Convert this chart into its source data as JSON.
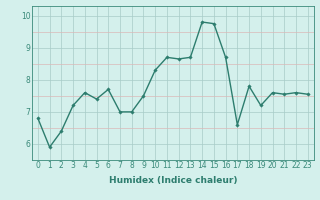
{
  "x": [
    0,
    1,
    2,
    3,
    4,
    5,
    6,
    7,
    8,
    9,
    10,
    11,
    12,
    13,
    14,
    15,
    16,
    17,
    18,
    19,
    20,
    21,
    22,
    23
  ],
  "y": [
    6.8,
    5.9,
    6.4,
    7.2,
    7.6,
    7.4,
    7.7,
    7.0,
    7.0,
    7.5,
    8.3,
    8.7,
    8.65,
    8.7,
    9.8,
    9.75,
    8.7,
    6.6,
    7.8,
    7.2,
    7.6,
    7.55,
    7.6,
    7.55
  ],
  "line_color": "#2d7d6e",
  "marker": "D",
  "marker_size": 1.8,
  "line_width": 1.0,
  "bg_color": "#d4f0ec",
  "grid_color_major": "#a8ccc8",
  "minor_grid_color": "#dbb8b8",
  "xlabel": "Humidex (Indice chaleur)",
  "xlabel_fontsize": 6.5,
  "xlabel_weight": "bold",
  "yticks": [
    6,
    7,
    8,
    9,
    10
  ],
  "xticks": [
    0,
    1,
    2,
    3,
    4,
    5,
    6,
    7,
    8,
    9,
    10,
    11,
    12,
    13,
    14,
    15,
    16,
    17,
    18,
    19,
    20,
    21,
    22,
    23
  ],
  "xlim": [
    -0.5,
    23.5
  ],
  "ylim": [
    5.5,
    10.3
  ],
  "tick_fontsize": 5.5,
  "spine_color": "#3a8a7a"
}
